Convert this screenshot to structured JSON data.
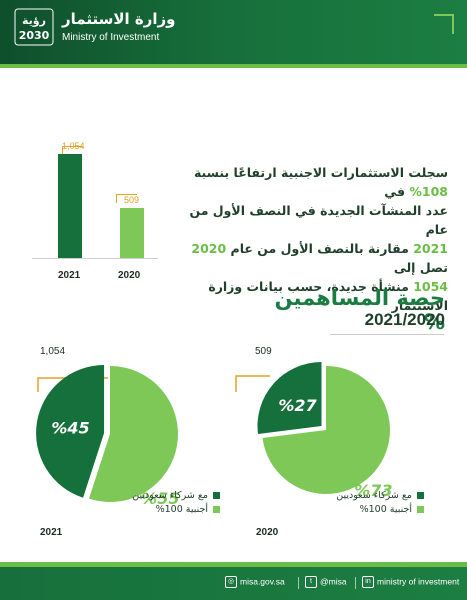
{
  "header": {
    "logo_ar": "وزارة الاستثمار",
    "logo_en": "Ministry of Investment",
    "logo_badge_lines": [
      "رؤية",
      "2030"
    ]
  },
  "colors": {
    "dark_green": "#16703b",
    "light_green": "#7ec857",
    "accent": "#e4a227",
    "text": "#1f3f2b"
  },
  "bar_chart": {
    "chart_data": {
      "type": "bar",
      "categories": [
        "2021",
        "2020"
      ],
      "values": [
        1054,
        509
      ],
      "value_labels": [
        "1,054",
        "509"
      ]
    }
  },
  "stat_text": {
    "line1_a": "سجلت الاستثمارات الاجنبية ارتفاعًا بنسبة ",
    "line1_b": "108%",
    "line1_c": " في",
    "line2": "عدد المنشآت الجديدة في النصف الأول من عام",
    "line3_a": "2021",
    "line3_b": " مقارنة بالنصف الأول من عام ",
    "line3_c": "2020",
    "line3_d": " تصل إلى",
    "line4_a": "1054",
    "line4_b": " منشأة جديدة، حسب بيانات وزارة الاستثمار"
  },
  "shares": {
    "title": "حصة المساهمين %",
    "years": "2021/2020",
    "chart_data": [
      {
        "type": "pie",
        "year": "2021",
        "count": "1,054",
        "slices": [
          {
            "name": "مع شركاء سعوديين",
            "value": 45,
            "label": "%45"
          },
          {
            "name": "أجنبية 100%",
            "value": 55,
            "label": "%55"
          }
        ]
      },
      {
        "type": "pie",
        "year": "2020",
        "count": "509",
        "slices": [
          {
            "name": "مع شركاء سعوديين",
            "value": 27,
            "label": "%27"
          },
          {
            "name": "أجنبية 100%",
            "value": 73,
            "label": "%73"
          }
        ]
      }
    ],
    "legend": [
      "مع شركاء سعوديين",
      "أجنبية 100%"
    ]
  },
  "footer": {
    "website": "misa.gov.sa",
    "twitter": "@misa",
    "linkedin": "ministry of investment"
  }
}
